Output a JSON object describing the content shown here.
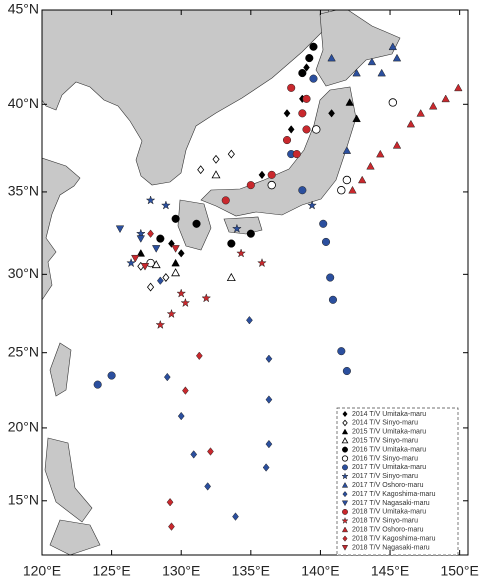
{
  "chart_data": {
    "type": "scatter",
    "projection": "mercator",
    "xlim": [
      120,
      150.6
    ],
    "ylim": [
      11.2,
      45
    ],
    "xticks": [
      {
        "value": 120,
        "label": "120°E"
      },
      {
        "value": 125,
        "label": "125°E"
      },
      {
        "value": 130,
        "label": "130°E"
      },
      {
        "value": 135,
        "label": "135°E"
      },
      {
        "value": 140,
        "label": "140°E"
      },
      {
        "value": 145,
        "label": "145°E"
      },
      {
        "value": 150,
        "label": "150°E"
      }
    ],
    "yticks": [
      {
        "value": 15,
        "label": "15°N"
      },
      {
        "value": 20,
        "label": "20°N"
      },
      {
        "value": 25,
        "label": "25°N"
      },
      {
        "value": 30,
        "label": "30°N"
      },
      {
        "value": 35,
        "label": "35°N"
      },
      {
        "value": 40,
        "label": "40°N"
      },
      {
        "value": 45,
        "label": "45°N"
      }
    ],
    "legend": "lower right",
    "series": [
      {
        "name": "2014 T/V Umitaka-maru",
        "marker": "diamond",
        "filled": true,
        "color": "#000000",
        "x": [
          137.6,
          137.9,
          138.7,
          135.8,
          129.3,
          130.0,
          139.0,
          140.8
        ],
        "y": [
          39.5,
          38.6,
          40.3,
          36.0,
          31.9,
          31.3,
          42.0,
          39.5
        ]
      },
      {
        "name": "2014 T/V Sinyo-maru",
        "marker": "diamond",
        "filled": false,
        "color": "#000000",
        "x": [
          133.6,
          132.5,
          128.9,
          127.8,
          127.1,
          131.4
        ],
        "y": [
          37.2,
          36.9,
          29.8,
          29.2,
          30.5,
          36.3
        ]
      },
      {
        "name": "2015 T/V Umitaka-maru",
        "marker": "triangle",
        "filled": true,
        "color": "#000000",
        "x": [
          142.1,
          142.6,
          127.1,
          129.6
        ],
        "y": [
          40.1,
          39.2,
          31.3,
          30.7
        ]
      },
      {
        "name": "2015 T/V Sinyo-maru",
        "marker": "triangle",
        "filled": false,
        "color": "#000000",
        "x": [
          133.6,
          129.6,
          132.5,
          128.2
        ],
        "y": [
          29.8,
          30.1,
          36.0,
          30.6
        ]
      },
      {
        "name": "2016 T/V Umitaka-maru",
        "marker": "circle",
        "filled": true,
        "color": "#000000",
        "x": [
          139.5,
          139.2,
          138.7,
          129.6,
          131.1,
          133.6,
          135.0,
          128.5
        ],
        "y": [
          43.1,
          42.5,
          41.7,
          33.4,
          33.1,
          31.9,
          32.5,
          32.2
        ]
      },
      {
        "name": "2016 T/V Sinyo-maru",
        "marker": "circle",
        "filled": false,
        "color": "#000000",
        "x": [
          145.2,
          139.7,
          141.5,
          141.9,
          136.5,
          127.8
        ],
        "y": [
          40.1,
          38.6,
          35.1,
          35.7,
          35.4,
          30.7
        ]
      },
      {
        "name": "2017 T/V Umitaka-maru",
        "marker": "circle",
        "filled": true,
        "color": "#2b4f9e",
        "x": [
          124.0,
          125.0,
          140.2,
          140.4,
          140.7,
          140.9,
          141.5,
          141.9,
          138.7,
          139.5,
          137.9
        ],
        "y": [
          22.9,
          23.5,
          33.1,
          32.0,
          29.8,
          28.4,
          25.1,
          23.8,
          35.1,
          41.4,
          37.2
        ]
      },
      {
        "name": "2017 T/V Sinyo-maru",
        "marker": "star",
        "filled": true,
        "color": "#2b4f9e",
        "x": [
          127.8,
          128.9,
          127.1,
          126.4,
          134.0,
          139.4
        ],
        "y": [
          34.5,
          34.2,
          32.5,
          30.7,
          32.8,
          34.2
        ]
      },
      {
        "name": "2017 T/V Oshoro-maru",
        "marker": "triangle",
        "filled": true,
        "color": "#2b4f9e",
        "x": [
          144.4,
          143.7,
          145.5,
          140.8,
          145.2,
          142.6,
          141.9
        ],
        "y": [
          41.7,
          42.3,
          42.5,
          42.5,
          43.1,
          41.7,
          37.4
        ]
      },
      {
        "name": "2017 T/V Kagoshima-maru",
        "marker": "diamond",
        "filled": true,
        "color": "#2b4f9e",
        "x": [
          134.9,
          136.3,
          136.3,
          136.3,
          136.1,
          129.0,
          130.0,
          130.9,
          131.9,
          133.9,
          128.5
        ],
        "y": [
          27.1,
          24.6,
          21.9,
          18.9,
          17.3,
          23.4,
          20.8,
          18.2,
          16.0,
          13.9,
          29.6
        ]
      },
      {
        "name": "2017 T/V Nagasaki-maru",
        "marker": "triangle-down",
        "filled": true,
        "color": "#2b4f9e",
        "x": [
          127.1,
          128.2,
          125.6
        ],
        "y": [
          32.2,
          31.6,
          32.8
        ]
      },
      {
        "name": "2018 T/V Umitaka-maru",
        "marker": "circle",
        "filled": true,
        "color": "#c9282d",
        "x": [
          138.3,
          137.6,
          138.7,
          139.0,
          136.5,
          135.0,
          133.2,
          137.9,
          139.0
        ],
        "y": [
          37.2,
          38.0,
          39.5,
          38.6,
          36.0,
          35.4,
          34.5,
          40.9,
          40.3
        ]
      },
      {
        "name": "2018 T/V Sinyo-maru",
        "marker": "star",
        "filled": true,
        "color": "#c9282d",
        "x": [
          130.0,
          130.3,
          129.3,
          128.5,
          131.8,
          135.8,
          134.3
        ],
        "y": [
          28.8,
          28.2,
          27.5,
          26.8,
          28.5,
          30.7,
          31.3
        ]
      },
      {
        "name": "2018 T/V Oshoro-maru",
        "marker": "triangle",
        "filled": true,
        "color": "#c9282d",
        "x": [
          149.9,
          149.0,
          148.1,
          147.2,
          146.5,
          145.5,
          144.3,
          143.6,
          143.0,
          142.3
        ],
        "y": [
          40.9,
          40.3,
          39.9,
          39.5,
          38.9,
          37.7,
          37.2,
          36.5,
          35.7,
          35.1
        ]
      },
      {
        "name": "2018 T/V Kagoshima-maru",
        "marker": "diamond",
        "filled": true,
        "color": "#c9282d",
        "x": [
          131.3,
          130.3,
          132.1,
          129.2,
          129.3,
          127.8
        ],
        "y": [
          24.8,
          22.5,
          18.4,
          14.9,
          13.2,
          32.5
        ]
      },
      {
        "name": "2018 T/V Nagasaki-maru",
        "marker": "triangle-down",
        "filled": true,
        "color": "#c9282d",
        "x": [
          127.4,
          129.6,
          126.7
        ],
        "y": [
          30.5,
          31.6,
          31.0
        ]
      }
    ]
  }
}
